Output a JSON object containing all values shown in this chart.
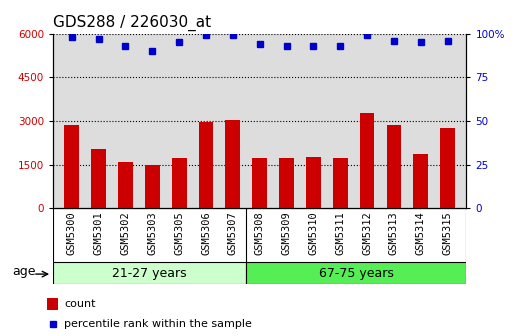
{
  "title": "GDS288 / 226030_at",
  "samples": [
    "GSM5300",
    "GSM5301",
    "GSM5302",
    "GSM5303",
    "GSM5305",
    "GSM5306",
    "GSM5307",
    "GSM5308",
    "GSM5309",
    "GSM5310",
    "GSM5311",
    "GSM5312",
    "GSM5313",
    "GSM5314",
    "GSM5315"
  ],
  "counts": [
    2850,
    2050,
    1580,
    1480,
    1720,
    2950,
    3020,
    1720,
    1720,
    1760,
    1720,
    3280,
    2870,
    1880,
    2760
  ],
  "percentiles": [
    98,
    97,
    93,
    90,
    95,
    99,
    99,
    94,
    93,
    93,
    93,
    99,
    96,
    95,
    96
  ],
  "bar_color": "#CC0000",
  "dot_color": "#0000CC",
  "left_yticks": [
    0,
    1500,
    3000,
    4500,
    6000
  ],
  "right_ytick_vals": [
    0,
    25,
    50,
    75,
    100
  ],
  "right_ytick_labels": [
    "0",
    "25",
    "50",
    "75",
    "100%"
  ],
  "ylim_left": [
    0,
    6000
  ],
  "ylim_right": [
    0,
    100
  ],
  "group1_label": "21-27 years",
  "group2_label": "67-75 years",
  "group1_count": 7,
  "group2_count": 8,
  "age_label": "age",
  "legend_count": "count",
  "legend_percentile": "percentile rank within the sample",
  "bg_color_group1": "#CCFFCC",
  "bg_color_group2": "#55EE55",
  "plot_bg_color": "#DDDDDD",
  "tick_label_color_left": "#CC0000",
  "tick_label_color_right": "#0000CC",
  "grid_color": "#000000",
  "title_fontsize": 11,
  "tick_fontsize": 7.5,
  "label_fontsize": 8,
  "bar_width": 0.55
}
